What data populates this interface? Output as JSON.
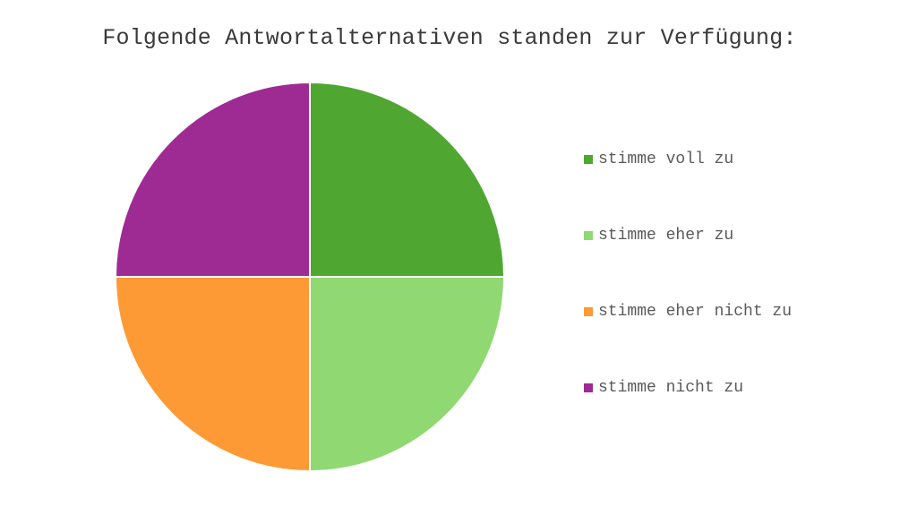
{
  "chart_data": {
    "type": "pie",
    "title": "Folgende Antwortalternativen standen zur Verfügung:",
    "categories": [
      "stimme voll zu",
      "stimme eher zu",
      "stimme eher nicht zu",
      "stimme nicht zu"
    ],
    "values": [
      25,
      25,
      25,
      25
    ],
    "colors": [
      "#4fa731",
      "#8fd872",
      "#fd9a35",
      "#9e2b93"
    ],
    "legend_position": "right"
  }
}
